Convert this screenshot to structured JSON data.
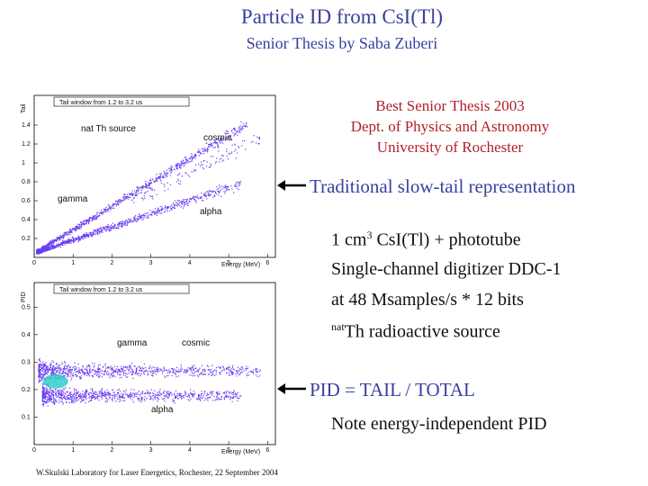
{
  "title": "Particle ID from CsI(Tl)",
  "subtitle": "Senior Thesis by Saba Zuberi",
  "award": [
    "Best Senior Thesis 2003",
    "Dept. of Physics and Astronomy",
    "University of Rochester"
  ],
  "arrow1_label": "Traditional slow-tail representation",
  "setup": {
    "line1_pre": "1 cm",
    "line1_sup": "3",
    "line1_post": " CsI(Tl) + phototube",
    "line2": "Single-channel digitizer DDC-1",
    "line3": "at 48 Msamples/s * 12 bits",
    "line4_sup": "nat",
    "line4_post": "Th radioactive source"
  },
  "arrow2_label": "PID = TAIL / TOTAL",
  "note": "Note energy-independent PID",
  "footer": "W.Skulski   Laboratory for Laser Energetics,  Rochester,  22 September 2004",
  "colors": {
    "heading": "#3a3fa0",
    "award": "#b0202a",
    "scatter": "#6a3cf0",
    "hot": "#19c6c4"
  },
  "chart_data": [
    {
      "type": "scatter",
      "title": "Tail window from 1.2 to 3.2 us",
      "xlabel": "Energy (MeV)",
      "ylabel": "Tail",
      "xlim": [
        0,
        6.2
      ],
      "ylim": [
        0,
        1.6
      ],
      "xticks": [
        "0",
        "1",
        "2",
        "3",
        "4",
        "5",
        "6"
      ],
      "yticks": [
        "0.2",
        "0.4",
        "0.6",
        "0.8",
        "1",
        "1.2",
        "1.4"
      ],
      "annotations": [
        "nat Th source",
        "cosmic",
        "gamma",
        "alpha"
      ],
      "bands": [
        {
          "name": "gamma",
          "x_range": [
            0.05,
            5.5
          ],
          "y_at_x0": 0.05,
          "slope": 0.25
        },
        {
          "name": "alpha",
          "x_range": [
            0.1,
            5.3
          ],
          "y_at_x0": 0.05,
          "slope": 0.14
        },
        {
          "name": "cosmic",
          "x_range": [
            2.5,
            5.8
          ],
          "y_at_x0": 0.1,
          "slope": 0.2
        }
      ]
    },
    {
      "type": "scatter",
      "title": "Tail window from 1.2 to 3.2 us",
      "xlabel": "Energy (MeV)",
      "ylabel": "PID",
      "xlim": [
        0,
        6.2
      ],
      "ylim": [
        0,
        0.55
      ],
      "xticks": [
        "0",
        "1",
        "2",
        "3",
        "4",
        "5",
        "6"
      ],
      "yticks": [
        "0.1",
        "0.2",
        "0.3",
        "0.4",
        "0.5"
      ],
      "annotations": [
        "gamma",
        "cosmic",
        "alpha"
      ],
      "bands": [
        {
          "name": "gamma",
          "x_range": [
            0.1,
            5.8
          ],
          "y": 0.27
        },
        {
          "name": "alpha",
          "x_range": [
            0.2,
            5.3
          ],
          "y": 0.18
        }
      ]
    }
  ]
}
